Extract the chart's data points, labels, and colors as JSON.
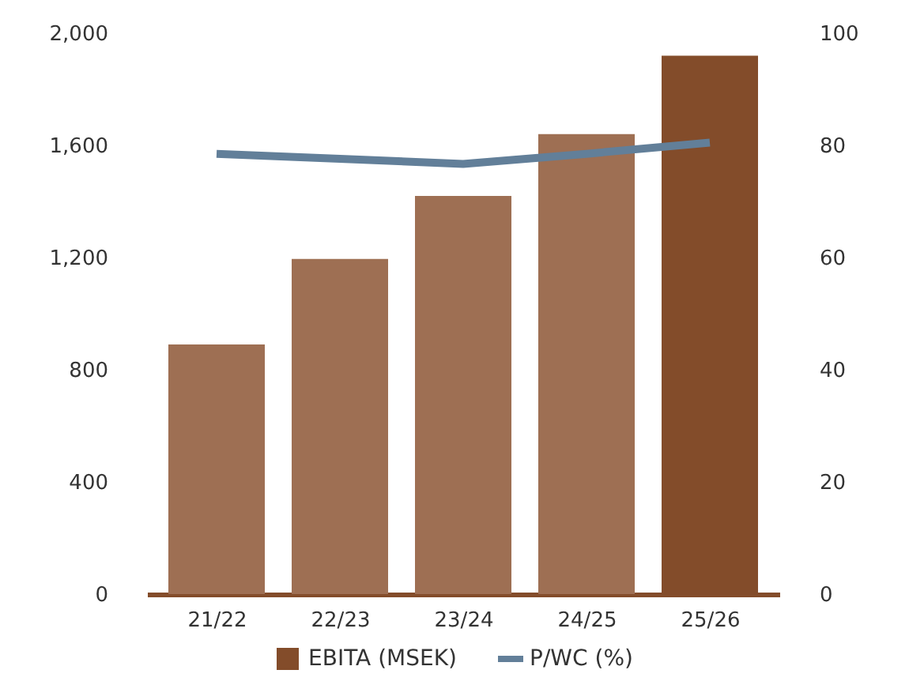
{
  "chart_data": {
    "type": "bar",
    "categories": [
      "21/22",
      "22/23",
      "23/24",
      "24/25",
      "25/26"
    ],
    "series": [
      {
        "name": "EBITA (MSEK)",
        "color": "#834c2a",
        "colors": [
          "#9e6f53",
          "#9e6f53",
          "#9e6f53",
          "#9e6f53",
          "#834c2a"
        ],
        "values": [
          890,
          1195,
          1420,
          1640,
          1920
        ]
      },
      {
        "name": "P/WC (%)",
        "type": "line",
        "axis": "y2",
        "color": "#627f99",
        "values": [
          78.5,
          77.6,
          76.7,
          78.5,
          80.5
        ]
      }
    ],
    "ylim": [
      0,
      2000
    ],
    "yticks": [
      0,
      400,
      800,
      {
        "value": 1200,
        "label": "1,200"
      },
      {
        "value": 1600,
        "label": "1,600"
      },
      {
        "value": 2000,
        "label": "2,000"
      }
    ],
    "y2lim": [
      0,
      100
    ],
    "y2ticks": [
      0,
      20,
      40,
      60,
      80,
      100
    ],
    "grid": false,
    "legend": "bottom"
  }
}
